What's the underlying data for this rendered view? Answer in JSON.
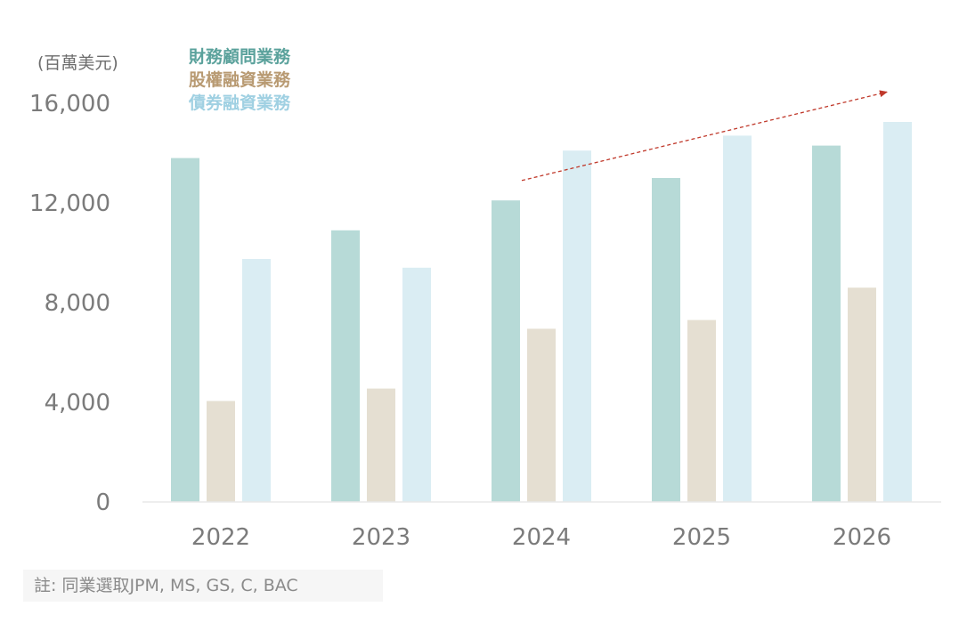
{
  "chart_data": {
    "type": "bar",
    "unit_label": "(百萬美元)",
    "categories": [
      "2022",
      "2023",
      "2024",
      "2025",
      "2026"
    ],
    "series": [
      {
        "name": "財務顧問業務",
        "color": "#b7dad7",
        "legend_color": "#5ba29c",
        "values": [
          13800,
          10900,
          12100,
          13000,
          14300
        ]
      },
      {
        "name": "股權融資業務",
        "color": "#e5dfd2",
        "legend_color": "#b89a72",
        "values": [
          4050,
          4550,
          6950,
          7300,
          8600
        ]
      },
      {
        "name": "債券融資業務",
        "color": "#daedf3",
        "legend_color": "#9fd0e2",
        "values": [
          9750,
          9400,
          14100,
          14700,
          15250
        ]
      }
    ],
    "yticks": [
      "0",
      "4,000",
      "8,000",
      "12,000",
      "16,000"
    ],
    "ytick_values": [
      0,
      4000,
      8000,
      12000,
      16000
    ],
    "ylim": [
      0,
      16000
    ],
    "grid": false,
    "legend_placement": "top-left",
    "trend_arrow": {
      "from": [
        "2024",
        12900
      ],
      "to": [
        "2026",
        16450
      ],
      "color": "#c0392b"
    }
  },
  "note": "註: 同業選取JPM,  MS, GS, C, BAC"
}
